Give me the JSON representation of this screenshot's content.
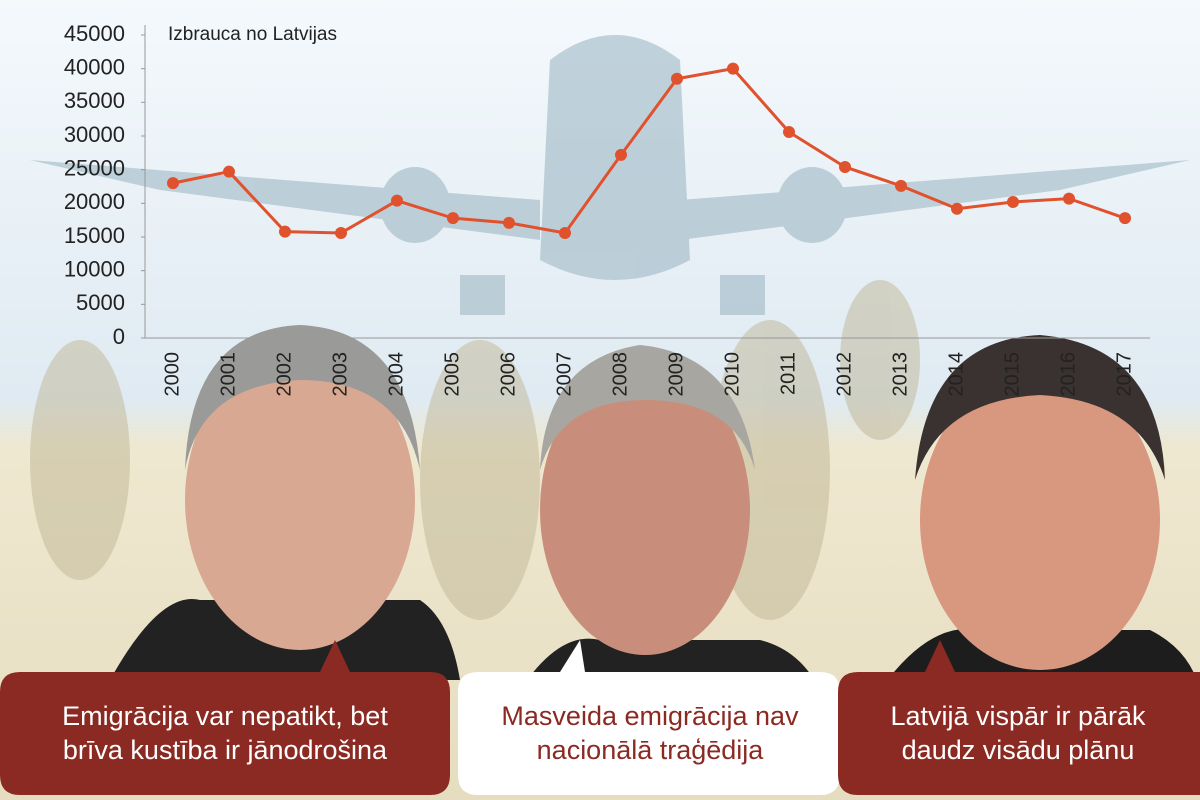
{
  "chart_data": {
    "type": "line",
    "title": "Izbrauca no Latvijas",
    "categories": [
      "2000",
      "2001",
      "2002",
      "2003",
      "2004",
      "2005",
      "2006",
      "2007",
      "2008",
      "2009",
      "2010",
      "2011",
      "2012",
      "2013",
      "2014",
      "2015",
      "2016",
      "2017"
    ],
    "series": [
      {
        "name": "Izbrauca no Latvijas",
        "color": "#e0522e",
        "values": [
          23000,
          24700,
          15800,
          15600,
          20400,
          17800,
          17100,
          15600,
          27200,
          38500,
          40000,
          30600,
          25400,
          22600,
          19200,
          20200,
          20700,
          17800
        ]
      }
    ],
    "ylim": [
      0,
      45000
    ],
    "yticks": [
      0,
      5000,
      10000,
      15000,
      20000,
      25000,
      30000,
      35000,
      40000,
      45000
    ],
    "grid": false
  },
  "quotes": [
    "Emigrācija var nepatikt, bet brīva kustība ir jānodrošina",
    "Masveida emigrācija nav nacionālā traģēdija",
    "Latvijā vispār ir pārāk daudz visādu plānu"
  ]
}
